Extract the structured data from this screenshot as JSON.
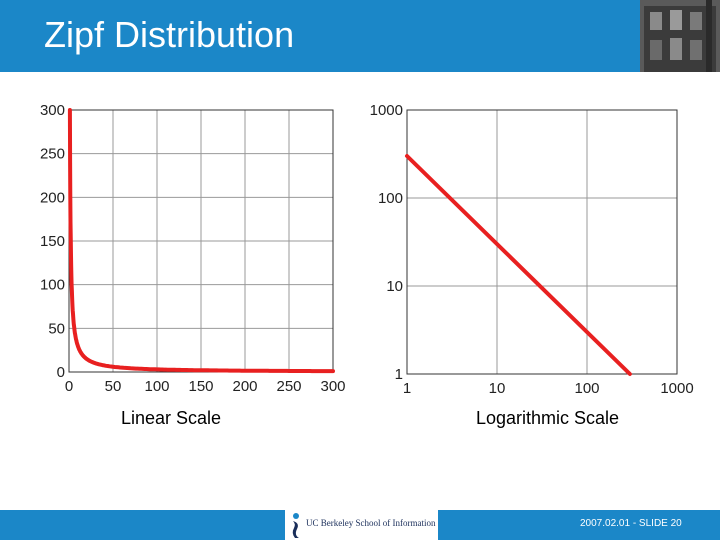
{
  "slide": {
    "title": "Zipf Distribution",
    "footer_logo_text": "UC Berkeley School of Information",
    "footer_slide": "2007.02.01 - SLIDE 20",
    "colors": {
      "bar": "#1b87c8",
      "series": "#e82020",
      "grid": "#999999"
    }
  },
  "chart_data": [
    {
      "type": "line",
      "caption": "Linear Scale",
      "xlim": [
        0,
        300
      ],
      "ylim": [
        0,
        300
      ],
      "x_ticks": [
        "0",
        "50",
        "100",
        "150",
        "200",
        "250",
        "300"
      ],
      "y_ticks": [
        "0",
        "50",
        "100",
        "150",
        "200",
        "250",
        "300"
      ],
      "grid": true,
      "series": [
        {
          "x": [
            1,
            2,
            3,
            4,
            5,
            7,
            10,
            15,
            20,
            30,
            50,
            75,
            100,
            150,
            200,
            250,
            300
          ],
          "values": [
            300,
            150,
            100,
            75,
            60,
            43,
            30,
            20,
            15,
            10,
            6,
            4,
            3,
            2,
            1.5,
            1.2,
            1
          ]
        }
      ]
    },
    {
      "type": "line",
      "caption": "Logarithmic Scale",
      "log_scale": true,
      "xlim": [
        1,
        1000
      ],
      "ylim": [
        1,
        1000
      ],
      "x_ticks": [
        "1",
        "10",
        "100",
        "1000"
      ],
      "y_ticks": [
        "1",
        "10",
        "100",
        "1000"
      ],
      "grid": true,
      "series": [
        {
          "x": [
            1,
            300
          ],
          "values": [
            300,
            1
          ]
        }
      ]
    }
  ]
}
